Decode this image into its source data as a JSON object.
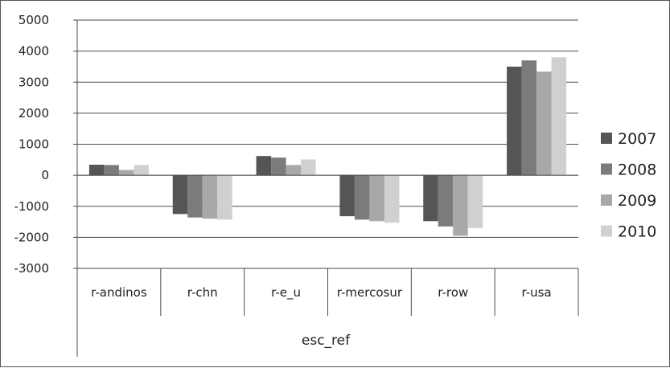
{
  "chart_data": {
    "type": "bar",
    "title": "",
    "xlabel": "",
    "ylabel": "",
    "group_label": "esc_ref",
    "categories": [
      "r-andinos",
      "r-chn",
      "r-e_u",
      "r-mercosur",
      "r-row",
      "r-usa"
    ],
    "series": [
      {
        "name": "2007",
        "color": "#555555",
        "values": [
          340,
          -1250,
          620,
          -1320,
          -1480,
          3500
        ]
      },
      {
        "name": "2008",
        "color": "#7b7b7b",
        "values": [
          330,
          -1360,
          570,
          -1430,
          -1650,
          3700
        ]
      },
      {
        "name": "2009",
        "color": "#a8a8a8",
        "values": [
          170,
          -1400,
          330,
          -1480,
          -1950,
          3340
        ]
      },
      {
        "name": "2010",
        "color": "#d0d0d0",
        "values": [
          330,
          -1430,
          510,
          -1530,
          -1700,
          3800
        ]
      }
    ],
    "ylim": [
      -3000,
      5000
    ],
    "yticks": [
      "5000",
      "4000",
      "3000",
      "2000",
      "1000",
      "0",
      "-1000",
      "-2000",
      "-3000"
    ],
    "grid": true,
    "legend_position": "right"
  }
}
